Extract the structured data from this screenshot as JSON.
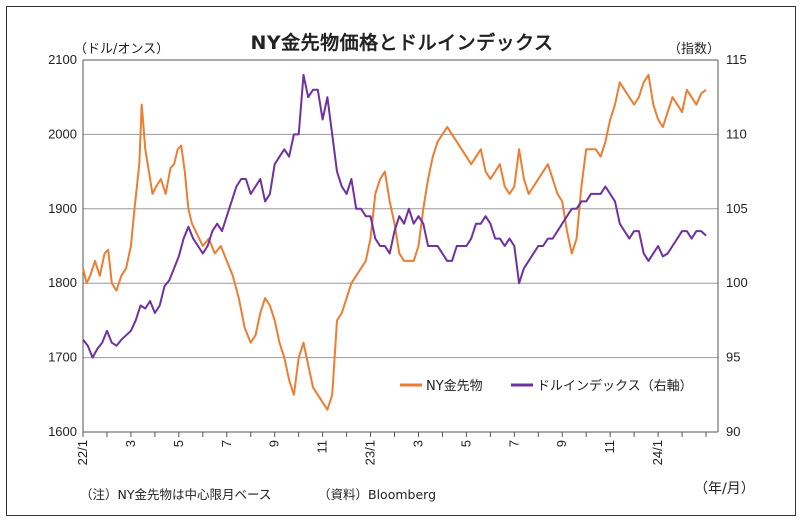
{
  "chart_data": {
    "type": "line",
    "title": "NY金先物価格とドルインデックス",
    "ylabel_left": "（ドル/オンス）",
    "ylabel_right": "（指数）",
    "xlabel": "（年/月）",
    "note": "（注）NY金先物は中心限月ベース",
    "source": "（資料）Bloomberg",
    "x_tick_labels": [
      "22/1",
      "3",
      "5",
      "7",
      "9",
      "11",
      "23/1",
      "3",
      "5",
      "7",
      "9",
      "11",
      "24/1"
    ],
    "y_left_ticks": [
      1600,
      1700,
      1800,
      1900,
      2000,
      2100
    ],
    "y_right_ticks": [
      90,
      95,
      100,
      105,
      110,
      115
    ],
    "ylim_left": [
      1600,
      2100
    ],
    "ylim_right": [
      90,
      115
    ],
    "xlim_months": [
      0,
      26.5
    ],
    "grid": "horizontal",
    "legend_position": "bottom-right",
    "series": [
      {
        "name": "NY金先物",
        "axis": "left",
        "color": "#ED7D31",
        "x": [
          0.0,
          0.15,
          0.3,
          0.5,
          0.7,
          0.9,
          1.05,
          1.2,
          1.4,
          1.6,
          1.8,
          2.0,
          2.15,
          2.25,
          2.35,
          2.45,
          2.6,
          2.75,
          2.9,
          3.05,
          3.25,
          3.45,
          3.65,
          3.8,
          3.95,
          4.1,
          4.25,
          4.4,
          4.55,
          4.7,
          4.85,
          5.0,
          5.25,
          5.5,
          5.75,
          6.0,
          6.25,
          6.5,
          6.75,
          7.0,
          7.2,
          7.4,
          7.6,
          7.8,
          8.0,
          8.2,
          8.4,
          8.6,
          8.8,
          9.0,
          9.2,
          9.4,
          9.6,
          9.8,
          10.0,
          10.2,
          10.4,
          10.6,
          10.8,
          11.0,
          11.2,
          11.4,
          11.6,
          11.8,
          12.0,
          12.2,
          12.4,
          12.6,
          12.8,
          13.0,
          13.2,
          13.4,
          13.6,
          13.8,
          14.0,
          14.2,
          14.4,
          14.6,
          14.8,
          15.0,
          15.2,
          15.4,
          15.6,
          15.8,
          16.0,
          16.2,
          16.4,
          16.6,
          16.8,
          17.0,
          17.2,
          17.4,
          17.6,
          17.8,
          18.0,
          18.2,
          18.4,
          18.6,
          18.8,
          19.0,
          19.2,
          19.4,
          19.6,
          19.8,
          20.0,
          20.2,
          20.4,
          20.6,
          20.8,
          21.0,
          21.2,
          21.4,
          21.6,
          21.8,
          22.0,
          22.2,
          22.4,
          22.6,
          22.8,
          23.0,
          23.2,
          23.4,
          23.6,
          23.8,
          24.0,
          24.2,
          24.4,
          24.6,
          24.8,
          25.0,
          25.2,
          25.4,
          25.6,
          25.8,
          26.0
        ],
        "values": [
          1820,
          1800,
          1810,
          1830,
          1810,
          1840,
          1845,
          1800,
          1790,
          1810,
          1820,
          1850,
          1900,
          1930,
          1960,
          2040,
          1980,
          1950,
          1920,
          1930,
          1940,
          1920,
          1955,
          1960,
          1980,
          1985,
          1950,
          1900,
          1880,
          1870,
          1860,
          1850,
          1860,
          1840,
          1850,
          1830,
          1810,
          1780,
          1740,
          1720,
          1730,
          1760,
          1780,
          1770,
          1750,
          1720,
          1700,
          1670,
          1650,
          1700,
          1720,
          1690,
          1660,
          1650,
          1640,
          1630,
          1650,
          1750,
          1760,
          1780,
          1800,
          1810,
          1820,
          1830,
          1860,
          1920,
          1940,
          1950,
          1910,
          1880,
          1840,
          1830,
          1830,
          1830,
          1850,
          1900,
          1940,
          1970,
          1990,
          2000,
          2010,
          2000,
          1990,
          1980,
          1970,
          1960,
          1970,
          1980,
          1950,
          1940,
          1950,
          1960,
          1930,
          1920,
          1930,
          1980,
          1940,
          1920,
          1930,
          1940,
          1950,
          1960,
          1940,
          1920,
          1910,
          1870,
          1840,
          1860,
          1930,
          1980,
          1980,
          1980,
          1970,
          1990,
          2020,
          2040,
          2070,
          2060,
          2050,
          2040,
          2050,
          2070,
          2080,
          2040,
          2020,
          2010,
          2030,
          2050,
          2040,
          2030,
          2060,
          2050,
          2040,
          2055,
          2060
        ]
      },
      {
        "name": "ドルインデックス（右軸）",
        "axis": "right",
        "color": "#7030A0",
        "x": [
          0.0,
          0.2,
          0.4,
          0.6,
          0.8,
          1.0,
          1.2,
          1.4,
          1.6,
          1.8,
          2.0,
          2.2,
          2.4,
          2.6,
          2.8,
          3.0,
          3.2,
          3.4,
          3.6,
          3.8,
          4.0,
          4.2,
          4.4,
          4.6,
          4.8,
          5.0,
          5.2,
          5.4,
          5.6,
          5.8,
          6.0,
          6.2,
          6.4,
          6.6,
          6.8,
          7.0,
          7.2,
          7.4,
          7.6,
          7.8,
          8.0,
          8.2,
          8.4,
          8.6,
          8.8,
          9.0,
          9.2,
          9.4,
          9.6,
          9.8,
          10.0,
          10.2,
          10.4,
          10.6,
          10.8,
          11.0,
          11.2,
          11.4,
          11.6,
          11.8,
          12.0,
          12.2,
          12.4,
          12.6,
          12.8,
          13.0,
          13.2,
          13.4,
          13.6,
          13.8,
          14.0,
          14.2,
          14.4,
          14.6,
          14.8,
          15.0,
          15.2,
          15.4,
          15.6,
          15.8,
          16.0,
          16.2,
          16.4,
          16.6,
          16.8,
          17.0,
          17.2,
          17.4,
          17.6,
          17.8,
          18.0,
          18.2,
          18.4,
          18.6,
          18.8,
          19.0,
          19.2,
          19.4,
          19.6,
          19.8,
          20.0,
          20.2,
          20.4,
          20.6,
          20.8,
          21.0,
          21.2,
          21.4,
          21.6,
          21.8,
          22.0,
          22.2,
          22.4,
          22.6,
          22.8,
          23.0,
          23.2,
          23.4,
          23.6,
          23.8,
          24.0,
          24.2,
          24.4,
          24.6,
          24.8,
          25.0,
          25.2,
          25.4,
          25.6,
          25.8,
          26.0
        ],
        "values": [
          96.2,
          95.8,
          95.0,
          95.6,
          96.0,
          96.8,
          96.0,
          95.8,
          96.2,
          96.5,
          96.8,
          97.5,
          98.5,
          98.3,
          98.8,
          98.0,
          98.5,
          99.8,
          100.2,
          101.0,
          101.8,
          103.0,
          103.8,
          103.0,
          102.5,
          102.0,
          102.5,
          103.5,
          104.0,
          103.5,
          104.5,
          105.5,
          106.5,
          107.0,
          107.0,
          106.0,
          106.5,
          107.0,
          105.5,
          106.0,
          108.0,
          108.5,
          109.0,
          108.5,
          110.0,
          110.0,
          114.0,
          112.5,
          113.0,
          113.0,
          111.0,
          112.5,
          110.0,
          107.5,
          106.5,
          106.0,
          107.0,
          105.0,
          105.0,
          104.5,
          104.5,
          103.0,
          102.5,
          102.5,
          102.0,
          103.5,
          104.5,
          104.0,
          105.0,
          104.0,
          104.5,
          104.0,
          102.5,
          102.5,
          102.5,
          102.0,
          101.5,
          101.5,
          102.5,
          102.5,
          102.5,
          103.0,
          104.0,
          104.0,
          104.5,
          104.0,
          103.0,
          103.0,
          102.5,
          103.0,
          102.5,
          100.0,
          101.0,
          101.5,
          102.0,
          102.5,
          102.5,
          103.0,
          103.0,
          103.5,
          104.0,
          104.5,
          105.0,
          105.0,
          105.5,
          105.5,
          106.0,
          106.0,
          106.0,
          106.5,
          106.0,
          105.5,
          104.0,
          103.5,
          103.0,
          103.5,
          103.5,
          102.0,
          101.5,
          102.0,
          102.5,
          101.8,
          102.0,
          102.5,
          103.0,
          103.5,
          103.5,
          103.0,
          103.5,
          103.5,
          103.2
        ]
      }
    ]
  }
}
